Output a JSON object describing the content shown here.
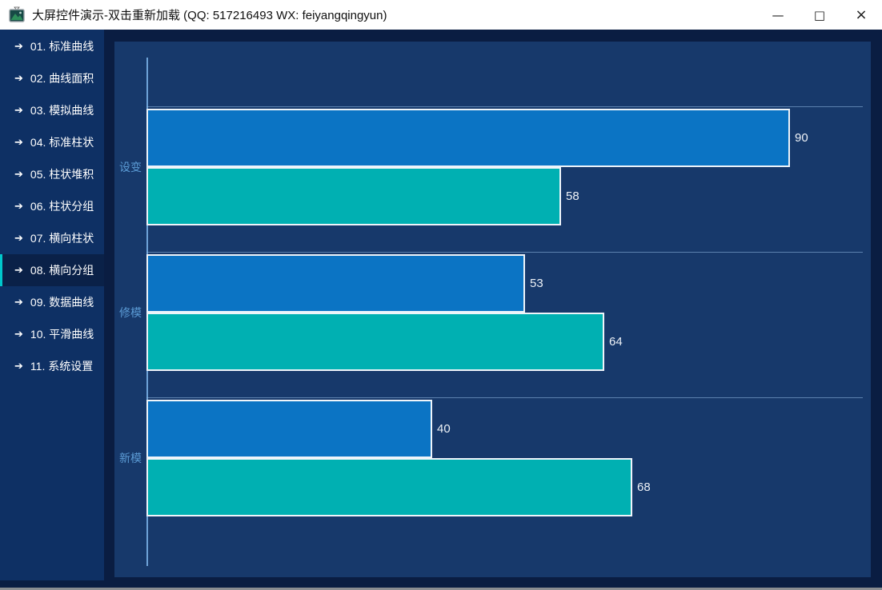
{
  "titlebar": {
    "title": "大屏控件演示-双击重新加载 (QQ: 517216493  WX: feiyangqingyun)",
    "controls": {
      "minimize": "—",
      "maximize": "□",
      "close": "×"
    }
  },
  "sidebar": {
    "arrow_icon": "➔",
    "accent_color": "#00c8cc",
    "items": [
      {
        "label": "01. 标准曲线",
        "selected": false
      },
      {
        "label": "02. 曲线面积",
        "selected": false
      },
      {
        "label": "03. 模拟曲线",
        "selected": false
      },
      {
        "label": "04. 标准柱状",
        "selected": false
      },
      {
        "label": "05. 柱状堆积",
        "selected": false
      },
      {
        "label": "06. 柱状分组",
        "selected": false
      },
      {
        "label": "07. 横向柱状",
        "selected": false
      },
      {
        "label": "08. 横向分组",
        "selected": true
      },
      {
        "label": "09. 数据曲线",
        "selected": false
      },
      {
        "label": "10. 平滑曲线",
        "selected": false
      },
      {
        "label": "11. 系统设置",
        "selected": false
      }
    ]
  },
  "chart_data": {
    "type": "bar",
    "orientation": "horizontal",
    "categories": [
      "设变",
      "修模",
      "新模"
    ],
    "series": [
      {
        "color": "#0b74c4",
        "values": [
          90,
          53,
          40
        ]
      },
      {
        "color": "#00b0b2",
        "values": [
          58,
          64,
          68
        ]
      }
    ],
    "xlim": [
      0,
      100
    ],
    "value_labels": true,
    "grid": "group-separators",
    "legend": "none",
    "axis_color": "#6ea3d8",
    "bar_border_color": "#eef4fa",
    "category_label_color": "#5b9bd5",
    "panel_background": "#17396b"
  }
}
